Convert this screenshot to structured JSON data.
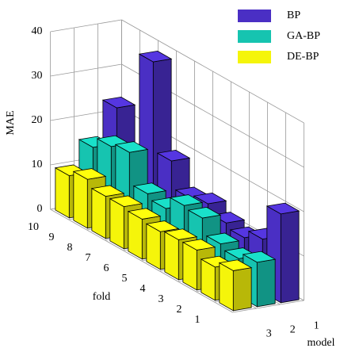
{
  "chart_data": {
    "type": "bar3d",
    "ylabel": "MAE",
    "xlabel": "fold",
    "zlabel": "model",
    "categories": [
      "10",
      "9",
      "8",
      "7",
      "6",
      "5",
      "4",
      "3",
      "2",
      "1"
    ],
    "zcategories": [
      "1",
      "2",
      "3"
    ],
    "series": [
      {
        "name": "BP",
        "color": "#4a2fc4",
        "values": [
          23,
          7,
          38,
          18,
          12,
          13,
          11,
          10,
          12,
          20
        ]
      },
      {
        "name": "GA-BP",
        "color": "#16c4b0",
        "values": [
          15,
          17.5,
          18.5,
          11.5,
          10.5,
          13.5,
          13,
          9.5,
          8.5,
          10
        ]
      },
      {
        "name": "DE-BP",
        "color": "#f5f50a",
        "values": [
          9.5,
          11,
          9.5,
          9.5,
          9,
          8.5,
          9,
          9,
          7.5,
          9
        ]
      }
    ],
    "ylim": [
      0,
      40
    ],
    "yticks": [
      0,
      10,
      20,
      30,
      40
    ],
    "grid": true
  }
}
